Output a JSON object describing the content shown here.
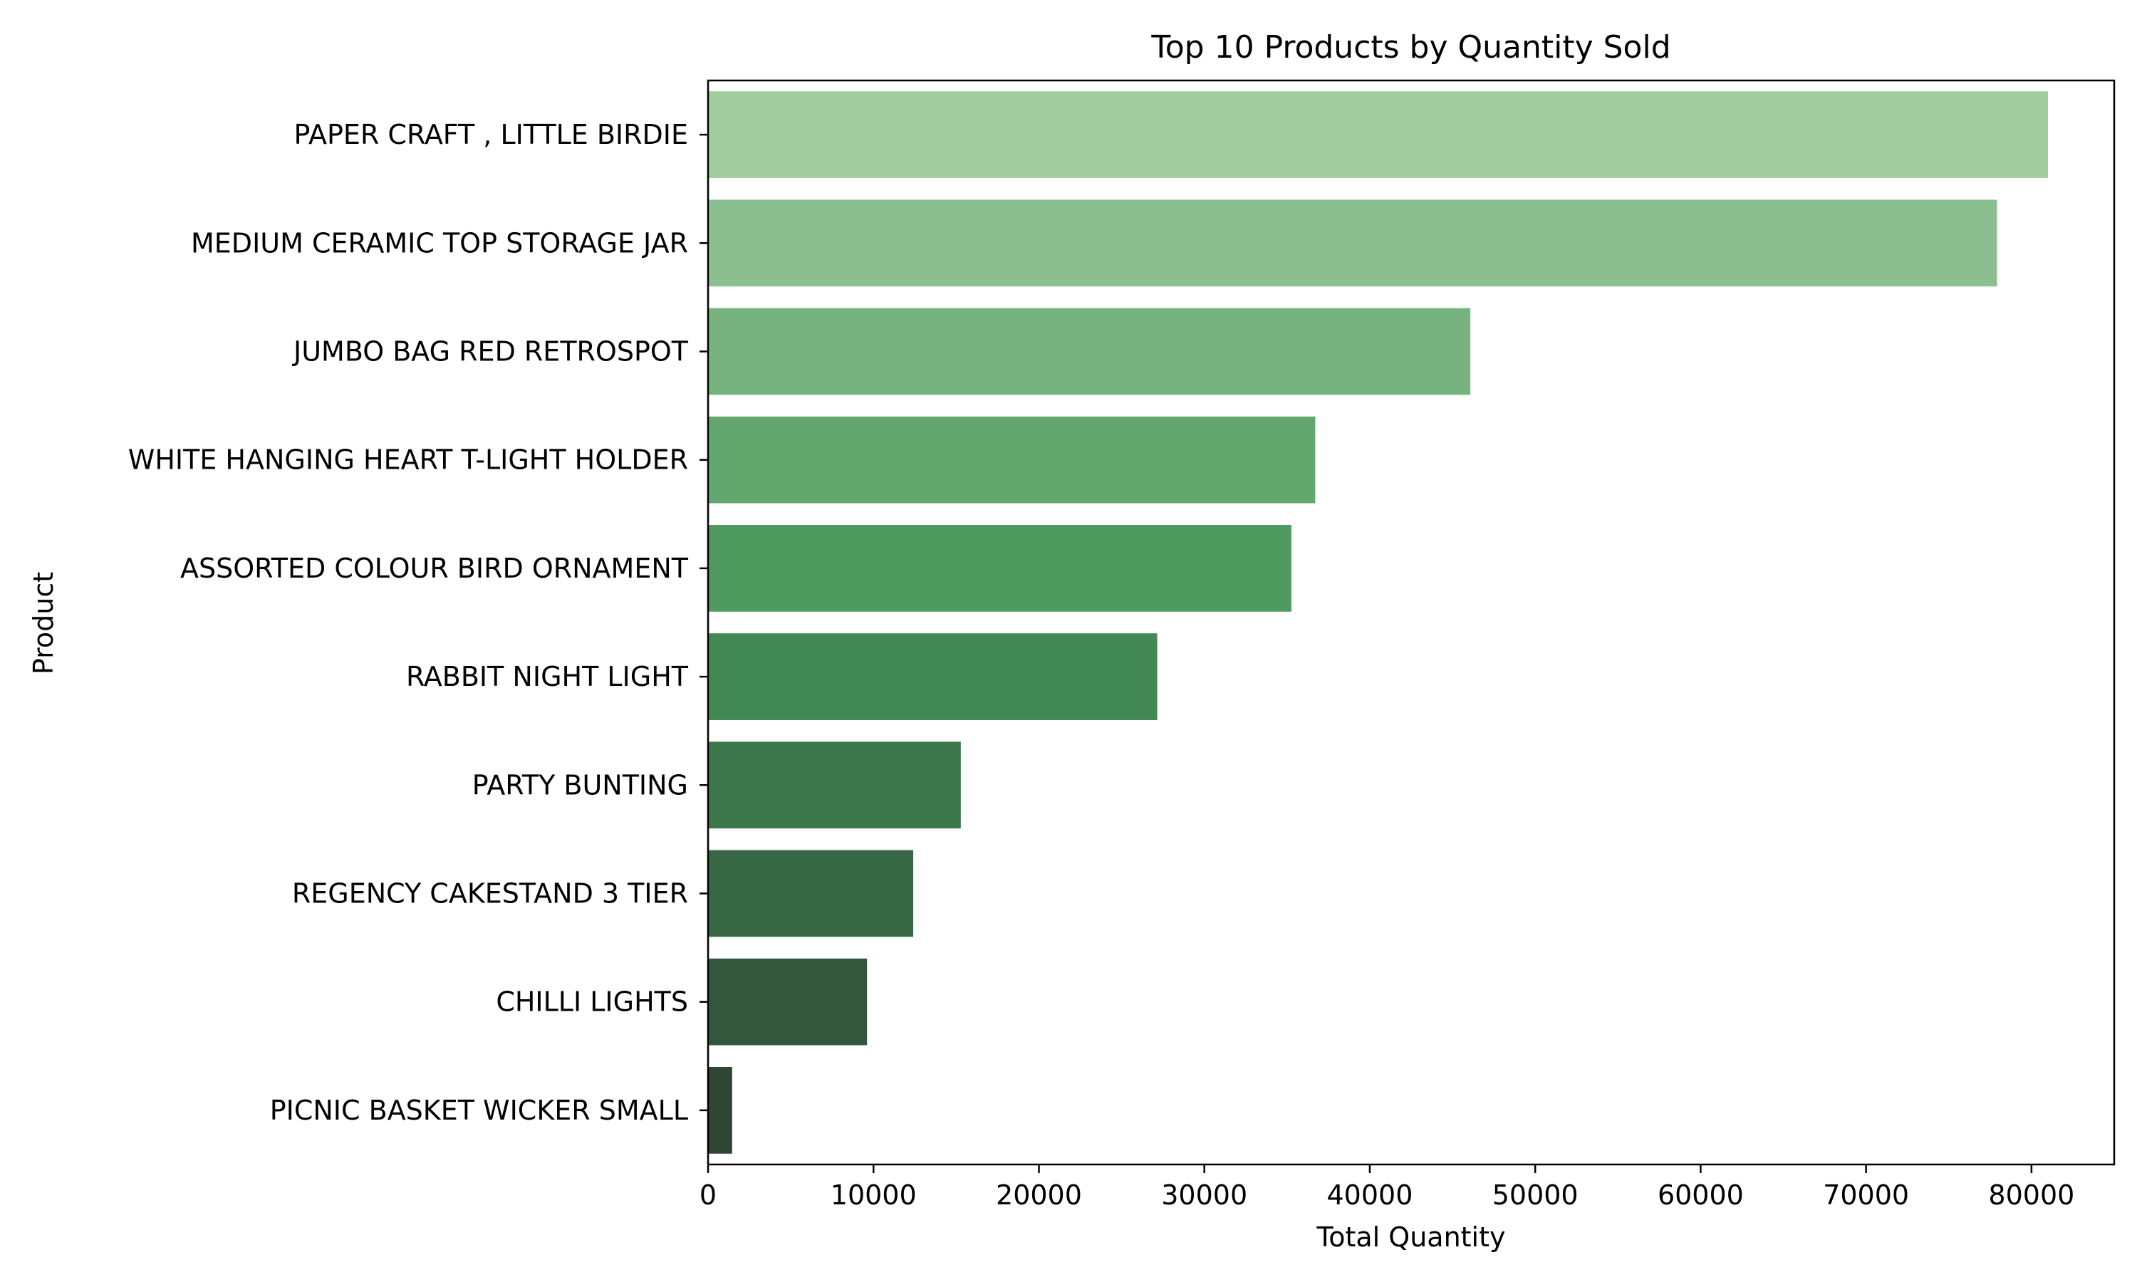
{
  "chart_data": {
    "type": "bar",
    "orientation": "horizontal",
    "title": "Top 10 Products by Quantity Sold",
    "xlabel": "Total Quantity",
    "ylabel": "Product",
    "categories": [
      "PAPER CRAFT , LITTLE BIRDIE",
      "MEDIUM CERAMIC TOP STORAGE JAR",
      "JUMBO BAG RED RETROSPOT",
      "WHITE HANGING HEART T-LIGHT HOLDER",
      "ASSORTED COLOUR BIRD ORNAMENT",
      "RABBIT NIGHT LIGHT",
      "PARTY BUNTING",
      "REGENCY CAKESTAND 3 TIER",
      "CHILLI LIGHTS",
      "PICNIC BASKET WICKER SMALL"
    ],
    "values": [
      80995,
      77916,
      46078,
      36706,
      35263,
      27153,
      15279,
      12402,
      9611,
      1455
    ],
    "xlim": [
      0,
      85000
    ],
    "xticks": [
      0,
      10000,
      20000,
      30000,
      40000,
      50000,
      60000,
      70000,
      80000
    ],
    "colors": [
      "#a1cd9e",
      "#8bbf8f",
      "#76b37e",
      "#61a76e",
      "#4e9a5f",
      "#438955",
      "#3c784c",
      "#376845",
      "#33573c",
      "#2f4634"
    ],
    "grid": false,
    "legend": "none"
  }
}
